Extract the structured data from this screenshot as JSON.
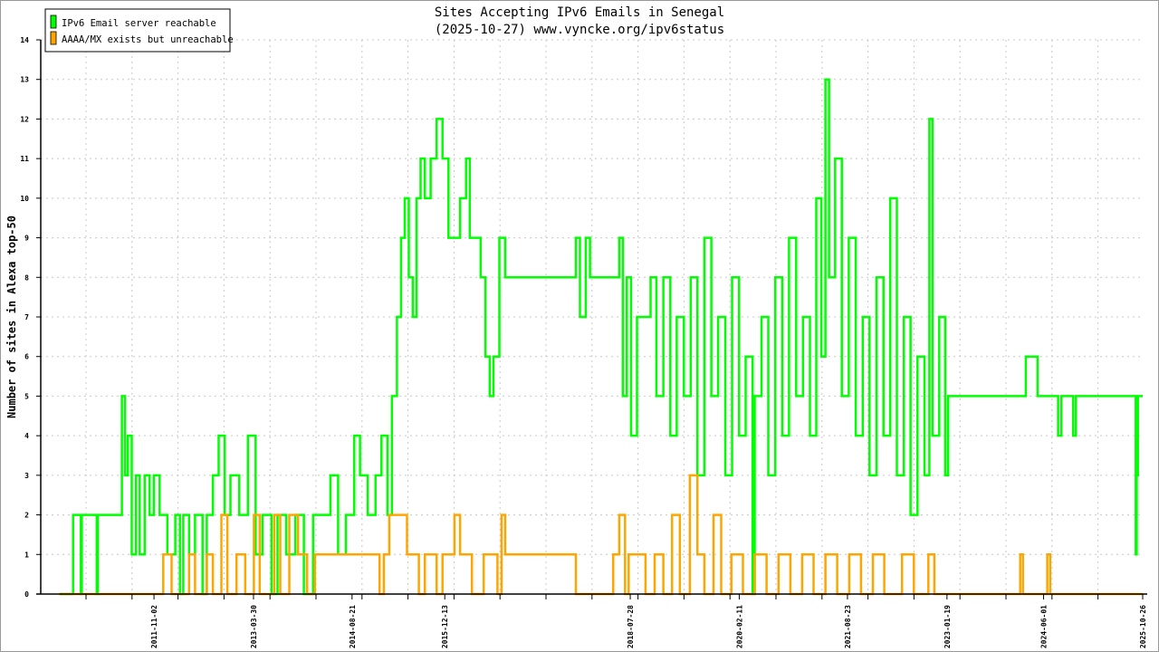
{
  "chart_data": {
    "type": "line",
    "title": "Sites Accepting IPv6 Emails in Senegal",
    "subtitle": "(2025-10-27) www.vyncke.org/ipv6status",
    "xlabel": "",
    "ylabel": "Number of sites in Alexa top-50",
    "xlim": [
      "2010-03-27",
      "2025-10-26"
    ],
    "ylim": [
      0,
      14
    ],
    "yticks": [
      0,
      1,
      2,
      3,
      4,
      5,
      6,
      7,
      8,
      9,
      10,
      11,
      12,
      13,
      14
    ],
    "xticks": [
      "2011-11-02",
      "2013-03-30",
      "2014-08-21",
      "2015-12-13",
      "2018-07-28",
      "2020-02-11",
      "2021-08-23",
      "2023-01-19",
      "2024-06-01",
      "2025-10-26"
    ],
    "grid": true,
    "legend_position": "top-left",
    "series": [
      {
        "name": "IPv6 Email server reachable",
        "color": "#00ff00",
        "points": [
          [
            "2010-07-01",
            0
          ],
          [
            "2010-09-10",
            2
          ],
          [
            "2010-10-20",
            0
          ],
          [
            "2010-10-25",
            2
          ],
          [
            "2011-01-10",
            0
          ],
          [
            "2011-01-15",
            2
          ],
          [
            "2011-05-20",
            5
          ],
          [
            "2011-06-05",
            3
          ],
          [
            "2011-06-20",
            4
          ],
          [
            "2011-07-10",
            1
          ],
          [
            "2011-08-01",
            3
          ],
          [
            "2011-08-20",
            1
          ],
          [
            "2011-09-15",
            3
          ],
          [
            "2011-10-10",
            2
          ],
          [
            "2011-11-01",
            3
          ],
          [
            "2011-12-01",
            2
          ],
          [
            "2012-01-10",
            1
          ],
          [
            "2012-02-20",
            2
          ],
          [
            "2012-03-15",
            0
          ],
          [
            "2012-04-01",
            2
          ],
          [
            "2012-05-01",
            1
          ],
          [
            "2012-06-01",
            2
          ],
          [
            "2012-07-10",
            0
          ],
          [
            "2012-08-01",
            2
          ],
          [
            "2012-09-01",
            3
          ],
          [
            "2012-10-01",
            4
          ],
          [
            "2012-11-01",
            2
          ],
          [
            "2012-12-01",
            3
          ],
          [
            "2013-01-15",
            2
          ],
          [
            "2013-03-01",
            4
          ],
          [
            "2013-04-10",
            1
          ],
          [
            "2013-05-15",
            2
          ],
          [
            "2013-07-01",
            0
          ],
          [
            "2013-08-01",
            2
          ],
          [
            "2013-09-15",
            1
          ],
          [
            "2013-11-01",
            2
          ],
          [
            "2013-12-15",
            0
          ],
          [
            "2014-02-01",
            2
          ],
          [
            "2014-05-01",
            3
          ],
          [
            "2014-06-10",
            1
          ],
          [
            "2014-07-20",
            2
          ],
          [
            "2014-09-01",
            4
          ],
          [
            "2014-10-01",
            3
          ],
          [
            "2014-11-10",
            2
          ],
          [
            "2014-12-20",
            3
          ],
          [
            "2015-01-20",
            4
          ],
          [
            "2015-02-20",
            2
          ],
          [
            "2015-03-15",
            5
          ],
          [
            "2015-04-10",
            7
          ],
          [
            "2015-05-01",
            9
          ],
          [
            "2015-05-20",
            10
          ],
          [
            "2015-06-10",
            8
          ],
          [
            "2015-07-01",
            7
          ],
          [
            "2015-07-20",
            10
          ],
          [
            "2015-08-10",
            11
          ],
          [
            "2015-09-01",
            10
          ],
          [
            "2015-10-01",
            11
          ],
          [
            "2015-11-01",
            12
          ],
          [
            "2015-12-01",
            11
          ],
          [
            "2016-01-01",
            9
          ],
          [
            "2016-03-01",
            10
          ],
          [
            "2016-04-01",
            11
          ],
          [
            "2016-04-20",
            9
          ],
          [
            "2016-06-15",
            8
          ],
          [
            "2016-07-10",
            6
          ],
          [
            "2016-08-01",
            5
          ],
          [
            "2016-08-20",
            6
          ],
          [
            "2016-09-20",
            9
          ],
          [
            "2016-10-20",
            8
          ],
          [
            "2017-10-20",
            9
          ],
          [
            "2017-11-10",
            7
          ],
          [
            "2017-12-10",
            9
          ],
          [
            "2018-01-01",
            8
          ],
          [
            "2018-06-01",
            9
          ],
          [
            "2018-06-20",
            5
          ],
          [
            "2018-07-10",
            8
          ],
          [
            "2018-08-01",
            4
          ],
          [
            "2018-09-01",
            7
          ],
          [
            "2018-11-10",
            8
          ],
          [
            "2018-12-10",
            5
          ],
          [
            "2019-01-15",
            8
          ],
          [
            "2019-02-20",
            4
          ],
          [
            "2019-03-25",
            7
          ],
          [
            "2019-05-01",
            5
          ],
          [
            "2019-06-05",
            8
          ],
          [
            "2019-07-10",
            3
          ],
          [
            "2019-08-15",
            9
          ],
          [
            "2019-09-20",
            5
          ],
          [
            "2019-10-25",
            7
          ],
          [
            "2019-12-01",
            3
          ],
          [
            "2020-01-05",
            8
          ],
          [
            "2020-02-10",
            4
          ],
          [
            "2020-03-15",
            6
          ],
          [
            "2020-04-20",
            0
          ],
          [
            "2020-05-01",
            5
          ],
          [
            "2020-06-05",
            7
          ],
          [
            "2020-07-10",
            3
          ],
          [
            "2020-08-15",
            8
          ],
          [
            "2020-09-20",
            4
          ],
          [
            "2020-10-25",
            9
          ],
          [
            "2020-12-01",
            5
          ],
          [
            "2021-01-05",
            7
          ],
          [
            "2021-02-10",
            4
          ],
          [
            "2021-03-15",
            10
          ],
          [
            "2021-04-10",
            6
          ],
          [
            "2021-05-01",
            13
          ],
          [
            "2021-05-20",
            8
          ],
          [
            "2021-06-20",
            11
          ],
          [
            "2021-07-25",
            5
          ],
          [
            "2021-08-30",
            9
          ],
          [
            "2021-10-05",
            4
          ],
          [
            "2021-11-10",
            7
          ],
          [
            "2021-12-15",
            3
          ],
          [
            "2022-01-20",
            8
          ],
          [
            "2022-02-25",
            4
          ],
          [
            "2022-04-01",
            10
          ],
          [
            "2022-05-05",
            3
          ],
          [
            "2022-06-10",
            7
          ],
          [
            "2022-07-15",
            2
          ],
          [
            "2022-08-20",
            6
          ],
          [
            "2022-09-25",
            3
          ],
          [
            "2022-10-20",
            12
          ],
          [
            "2022-11-05",
            4
          ],
          [
            "2022-12-10",
            7
          ],
          [
            "2023-01-10",
            3
          ],
          [
            "2023-01-25",
            5
          ],
          [
            "2024-03-01",
            6
          ],
          [
            "2024-05-01",
            5
          ],
          [
            "2024-08-15",
            4
          ],
          [
            "2024-09-01",
            5
          ],
          [
            "2024-11-01",
            4
          ],
          [
            "2024-11-15",
            5
          ],
          [
            "2025-09-20",
            1
          ],
          [
            "2025-09-25",
            3
          ],
          [
            "2025-10-01",
            5
          ],
          [
            "2025-10-26",
            5
          ]
        ]
      },
      {
        "name": "AAAA/MX exists but unreachable",
        "color": "#ffa500",
        "points": [
          [
            "2010-07-01",
            0
          ],
          [
            "2011-12-20",
            1
          ],
          [
            "2012-02-01",
            0
          ],
          [
            "2012-05-01",
            1
          ],
          [
            "2012-06-01",
            0
          ],
          [
            "2012-08-01",
            1
          ],
          [
            "2012-09-01",
            0
          ],
          [
            "2012-10-15",
            2
          ],
          [
            "2012-11-15",
            0
          ],
          [
            "2013-01-01",
            1
          ],
          [
            "2013-02-15",
            0
          ],
          [
            "2013-04-01",
            2
          ],
          [
            "2013-05-01",
            0
          ],
          [
            "2013-07-15",
            2
          ],
          [
            "2013-08-15",
            0
          ],
          [
            "2013-10-01",
            2
          ],
          [
            "2013-11-15",
            1
          ],
          [
            "2014-01-01",
            0
          ],
          [
            "2014-02-10",
            1
          ],
          [
            "2014-04-01",
            1
          ],
          [
            "2015-01-10",
            0
          ],
          [
            "2015-02-01",
            1
          ],
          [
            "2015-03-01",
            2
          ],
          [
            "2015-06-01",
            1
          ],
          [
            "2015-08-01",
            0
          ],
          [
            "2015-09-01",
            1
          ],
          [
            "2015-11-01",
            0
          ],
          [
            "2015-12-01",
            1
          ],
          [
            "2016-02-01",
            2
          ],
          [
            "2016-03-01",
            1
          ],
          [
            "2016-05-01",
            0
          ],
          [
            "2016-07-01",
            1
          ],
          [
            "2016-09-10",
            0
          ],
          [
            "2016-10-01",
            2
          ],
          [
            "2016-10-20",
            1
          ],
          [
            "2017-10-20",
            0
          ],
          [
            "2018-05-01",
            1
          ],
          [
            "2018-06-01",
            2
          ],
          [
            "2018-07-01",
            0
          ],
          [
            "2018-07-20",
            1
          ],
          [
            "2018-10-15",
            0
          ],
          [
            "2018-12-01",
            1
          ],
          [
            "2019-01-15",
            0
          ],
          [
            "2019-03-01",
            2
          ],
          [
            "2019-04-10",
            0
          ],
          [
            "2019-06-01",
            3
          ],
          [
            "2019-07-10",
            1
          ],
          [
            "2019-08-15",
            0
          ],
          [
            "2019-10-01",
            2
          ],
          [
            "2019-11-10",
            0
          ],
          [
            "2020-01-01",
            1
          ],
          [
            "2020-03-01",
            0
          ],
          [
            "2020-05-01",
            1
          ],
          [
            "2020-07-01",
            0
          ],
          [
            "2020-09-01",
            1
          ],
          [
            "2020-11-01",
            0
          ],
          [
            "2021-01-01",
            1
          ],
          [
            "2021-03-01",
            0
          ],
          [
            "2021-05-01",
            1
          ],
          [
            "2021-07-01",
            0
          ],
          [
            "2021-09-01",
            1
          ],
          [
            "2021-11-01",
            0
          ],
          [
            "2022-01-01",
            1
          ],
          [
            "2022-03-01",
            0
          ],
          [
            "2022-06-01",
            1
          ],
          [
            "2022-08-01",
            0
          ],
          [
            "2022-10-15",
            1
          ],
          [
            "2022-11-15",
            0
          ],
          [
            "2024-02-01",
            1
          ],
          [
            "2024-02-15",
            0
          ],
          [
            "2024-06-20",
            1
          ],
          [
            "2024-07-05",
            0
          ],
          [
            "2025-10-26",
            0
          ]
        ]
      }
    ]
  }
}
